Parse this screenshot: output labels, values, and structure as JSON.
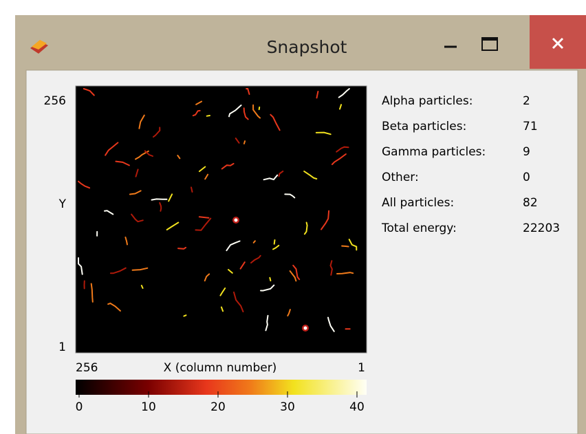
{
  "window": {
    "title": "Snapshot"
  },
  "plot": {
    "y_axis": {
      "label": "Y",
      "top": 256,
      "bottom": 1
    },
    "x_axis": {
      "label": "X (column number)",
      "left": 256,
      "right": 1
    },
    "colorbar": {
      "lim": [
        0,
        40
      ],
      "ticks": [
        0,
        10,
        20,
        30,
        40
      ]
    }
  },
  "stats": [
    {
      "label": "Alpha particles:",
      "value": 2
    },
    {
      "label": "Beta particles:",
      "value": 71
    },
    {
      "label": "Gamma particles:",
      "value": 9
    },
    {
      "label": "Other:",
      "value": 0
    },
    {
      "label": "All particles:",
      "value": 82
    },
    {
      "label": "Total energy:",
      "value": 22203
    }
  ]
}
